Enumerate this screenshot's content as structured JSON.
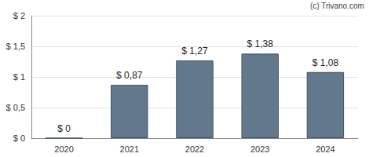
{
  "chart_data": {
    "type": "bar",
    "annotations": [
      "(c) Trivano.com"
    ],
    "categories": [
      "2020",
      "2021",
      "2022",
      "2023",
      "2024"
    ],
    "values": [
      0,
      0.87,
      1.27,
      1.38,
      1.08
    ],
    "value_labels": [
      "$ 0",
      "$ 0,87",
      "$ 1,27",
      "$ 1,38",
      "$ 1,08"
    ],
    "data_labels": true,
    "color": "#62798d",
    "ylim": [
      0,
      2
    ],
    "yticks": [
      {
        "value": 0,
        "label": "$ 0"
      },
      {
        "value": 0.5,
        "label": "$ 0,5"
      },
      {
        "value": 1,
        "label": "$ 1"
      },
      {
        "value": 1.5,
        "label": "$ 1,5"
      },
      {
        "value": 2,
        "label": "$ 2"
      }
    ],
    "grid": true
  }
}
